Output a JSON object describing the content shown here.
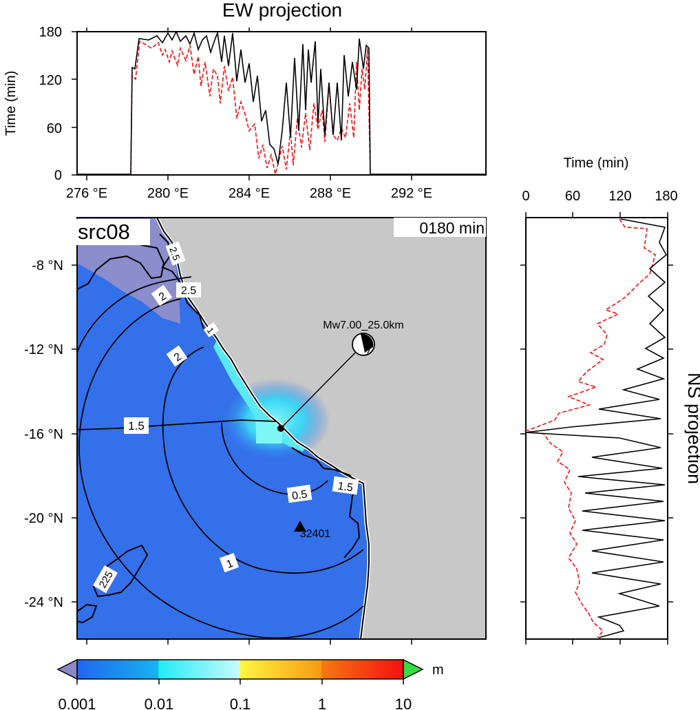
{
  "ew_panel": {
    "title": "EW projection",
    "ylabel": "Time (min)",
    "yticks": [
      "0",
      "60",
      "120",
      "180"
    ],
    "xticks": [
      "276 °E",
      "280 °E",
      "284 °E",
      "288 °E",
      "292 °E"
    ]
  },
  "ns_panel": {
    "title": "NS projection",
    "xlabel": "Time (min)",
    "xticks": [
      "0",
      "60",
      "120",
      "180"
    ]
  },
  "map": {
    "source_label": "src08",
    "time_label": "0180 min",
    "lat_ticks": [
      "-8 °N",
      "-12 °N",
      "-16 °N",
      "-20 °N",
      "-24 °N"
    ],
    "event_label": "Mw7.00_25.0km",
    "station_label": "32401",
    "contour_labels": [
      "0.5",
      "1",
      "1.5",
      "1.5",
      "2",
      "2",
      "2.5",
      "225",
      "2.5",
      "1"
    ]
  },
  "colorbar": {
    "unit": "m",
    "ticks": [
      "0.001",
      "0.01",
      "0.1",
      "1",
      "10"
    ],
    "colors": {
      "under": "#8a88c8",
      "over": "#33dd44",
      "blue": "#2a6df0",
      "cyan": "#35f6f6",
      "yellow": "#f8f31c",
      "red": "#f61e12"
    }
  },
  "colors": {
    "land": "#c8c8c8",
    "ocean": "#3370ea",
    "dry_zone": "#8b8dcc",
    "highlight": "#5ae8f2",
    "max_curve": "#000000",
    "arrival_curve": "#ee1111"
  }
}
